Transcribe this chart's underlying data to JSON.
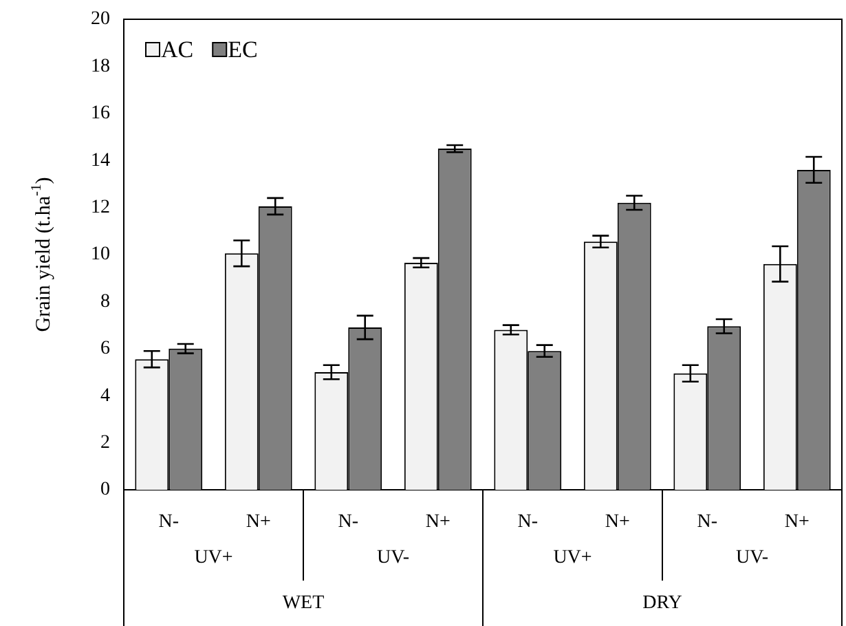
{
  "chart_data": {
    "type": "bar",
    "ylabel": "Grain yield (t.ha$^{-1}$)",
    "categories": [
      "N-",
      "N+",
      "N-",
      "N+",
      "N-",
      "N+",
      "N-",
      "N+"
    ],
    "series": [
      {
        "name": "AC",
        "color": "#f2f2f2",
        "values": [
          5.55,
          10.05,
          5.0,
          9.65,
          6.8,
          10.55,
          4.95,
          9.6
        ],
        "errors": [
          0.35,
          0.55,
          0.3,
          0.2,
          0.2,
          0.25,
          0.35,
          0.75
        ]
      },
      {
        "name": "EC",
        "color": "#808080",
        "values": [
          6.0,
          12.05,
          6.9,
          14.5,
          5.9,
          12.2,
          6.95,
          13.6
        ],
        "errors": [
          0.2,
          0.35,
          0.5,
          0.15,
          0.25,
          0.3,
          0.3,
          0.55
        ]
      }
    ],
    "annotations": [
      "UV+",
      "UV-",
      "UV+",
      "UV-",
      "WET",
      "DRY"
    ],
    "ylim": [
      0,
      20
    ],
    "yticks": [
      0,
      2,
      4,
      6,
      8,
      10,
      12,
      14,
      16,
      18,
      20
    ],
    "grid": false,
    "legend": "top left"
  }
}
